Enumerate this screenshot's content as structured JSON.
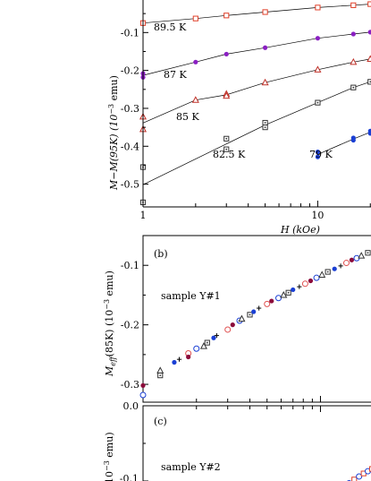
{
  "chart_data": [
    {
      "type": "line",
      "panel": "(a)",
      "xlabel": "H (kOe)",
      "ylabel": "M−M(95K) (10⁻³ emu)",
      "xscale": "log",
      "xlim": [
        1,
        20
      ],
      "ylim": [
        -0.56,
        0.0
      ],
      "x_ticks": [
        1,
        10
      ],
      "y_ticks": [
        -0.1,
        -0.2,
        -0.3,
        -0.4,
        -0.5
      ],
      "y_tick_labels": [
        "-0.1",
        "-0.2",
        "-0.3",
        "-0.4",
        "-0.5"
      ],
      "series": [
        {
          "name": "89.5 K",
          "color": "#e0402a",
          "marker": "square-open",
          "points": [
            [
              1,
              -0.075
            ],
            [
              2,
              -0.063
            ],
            [
              3,
              -0.055
            ],
            [
              5,
              -0.046
            ],
            [
              10,
              -0.034
            ],
            [
              16,
              -0.028
            ],
            [
              20,
              -0.025
            ]
          ]
        },
        {
          "name": "87 K",
          "color": "#8a1fc2",
          "marker": "circle-filled",
          "points": [
            [
              1,
              -0.208
            ],
            [
              1,
              -0.218
            ],
            [
              2,
              -0.178
            ],
            [
              3,
              -0.157
            ],
            [
              5,
              -0.14
            ],
            [
              10,
              -0.115
            ],
            [
              16,
              -0.104
            ],
            [
              20,
              -0.099
            ]
          ]
        },
        {
          "name": "85 K",
          "color": "#c0322a",
          "marker": "triangle-open",
          "points": [
            [
              1,
              -0.322
            ],
            [
              1,
              -0.355
            ],
            [
              2,
              -0.278
            ],
            [
              3,
              -0.262
            ],
            [
              3,
              -0.267
            ],
            [
              5,
              -0.232
            ],
            [
              10,
              -0.198
            ],
            [
              16,
              -0.178
            ],
            [
              20,
              -0.17
            ]
          ]
        },
        {
          "name": "82.5 K",
          "color": "#333333",
          "marker": "square-dot",
          "points": [
            [
              1,
              -0.455
            ],
            [
              1,
              -0.548
            ],
            [
              3,
              -0.38
            ],
            [
              3,
              -0.408
            ],
            [
              5,
              -0.338
            ],
            [
              5,
              -0.35
            ],
            [
              10,
              -0.285
            ],
            [
              16,
              -0.245
            ],
            [
              20,
              -0.23
            ]
          ]
        },
        {
          "name": "79 K",
          "color": "#1a3fd4",
          "marker": "circle-filled",
          "points": [
            [
              10,
              -0.415
            ],
            [
              10,
              -0.428
            ],
            [
              16,
              -0.378
            ],
            [
              16,
              -0.384
            ],
            [
              20,
              -0.36
            ],
            [
              20,
              -0.366
            ]
          ]
        }
      ]
    },
    {
      "type": "scatter",
      "panel": "(b)",
      "annotation": "sample Y#1",
      "ylabel": "M_eff(85K) (10⁻³ emu)",
      "ylim": [
        -0.33,
        -0.05
      ],
      "y_ticks": [
        -0.1,
        -0.2,
        -0.3
      ],
      "y_tick_labels": [
        "-0.1",
        "-0.2",
        "-0.3"
      ],
      "points": [
        [
          1.0,
          -0.302
        ],
        [
          1.0,
          -0.318
        ],
        [
          1.25,
          -0.277
        ],
        [
          1.25,
          -0.285
        ],
        [
          1.5,
          -0.263
        ],
        [
          1.6,
          -0.258
        ],
        [
          1.8,
          -0.248
        ],
        [
          1.8,
          -0.254
        ],
        [
          2.0,
          -0.24
        ],
        [
          2.2,
          -0.236
        ],
        [
          2.3,
          -0.23
        ],
        [
          2.5,
          -0.222
        ],
        [
          2.6,
          -0.218
        ],
        [
          3.0,
          -0.208
        ],
        [
          3.2,
          -0.2
        ],
        [
          3.5,
          -0.193
        ],
        [
          3.6,
          -0.19
        ],
        [
          4.0,
          -0.183
        ],
        [
          4.2,
          -0.178
        ],
        [
          4.5,
          -0.172
        ],
        [
          5.0,
          -0.165
        ],
        [
          5.3,
          -0.16
        ],
        [
          5.8,
          -0.155
        ],
        [
          6.2,
          -0.15
        ],
        [
          6.6,
          -0.146
        ],
        [
          7.0,
          -0.141
        ],
        [
          7.6,
          -0.136
        ],
        [
          8.2,
          -0.131
        ],
        [
          8.8,
          -0.126
        ],
        [
          9.5,
          -0.121
        ],
        [
          10.2,
          -0.116
        ],
        [
          11.0,
          -0.111
        ],
        [
          12.0,
          -0.106
        ],
        [
          13.0,
          -0.101
        ],
        [
          14.0,
          -0.096
        ],
        [
          15.0,
          -0.091
        ],
        [
          16.0,
          -0.088
        ],
        [
          17.0,
          -0.084
        ],
        [
          18.5,
          -0.079
        ],
        [
          20.0,
          -0.074
        ]
      ]
    },
    {
      "type": "scatter",
      "panel": "(c)",
      "annotation": "sample Y#2",
      "ylabel": "(10⁻³ emu)",
      "y_ticks": [
        0.0,
        -0.1
      ],
      "y_tick_labels": [
        "0.0",
        "-0.1"
      ],
      "points": [
        [
          13.5,
          -0.108
        ],
        [
          14.5,
          -0.103
        ],
        [
          15.5,
          -0.098
        ],
        [
          16.5,
          -0.094
        ],
        [
          17.5,
          -0.09
        ],
        [
          18.5,
          -0.087
        ],
        [
          19.5,
          -0.084
        ],
        [
          20.5,
          -0.081
        ]
      ]
    }
  ],
  "labels": {
    "panel_a_xlabel": "H (kOe)",
    "panel_a_ylabel": "M−M(95K) (10",
    "panel_a_ylabel_exp": "−3",
    "panel_a_ylabel_tail": " emu)",
    "panel_b_tag": "(b)",
    "panel_b_sample": "sample Y#1",
    "panel_b_ylabel_main": "M",
    "panel_b_ylabel_sub": "eff",
    "panel_b_ylabel_rest": "(85K) (10",
    "panel_b_ylabel_exp": "−3",
    "panel_b_ylabel_tail": " emu)",
    "panel_c_tag": "(c)",
    "panel_c_sample": "sample Y#2",
    "panel_c_ylabel_pre": "10",
    "panel_c_ylabel_exp": "−3",
    "panel_c_ylabel_tail": " emu)",
    "curve_labels": [
      "89.5 K",
      "87 K",
      "85 K",
      "82.5 K",
      "79 K"
    ],
    "x_tick_1": "1",
    "x_tick_10": "10",
    "c_tick_0": "0.0",
    "c_tick_m01": "-0.1"
  }
}
